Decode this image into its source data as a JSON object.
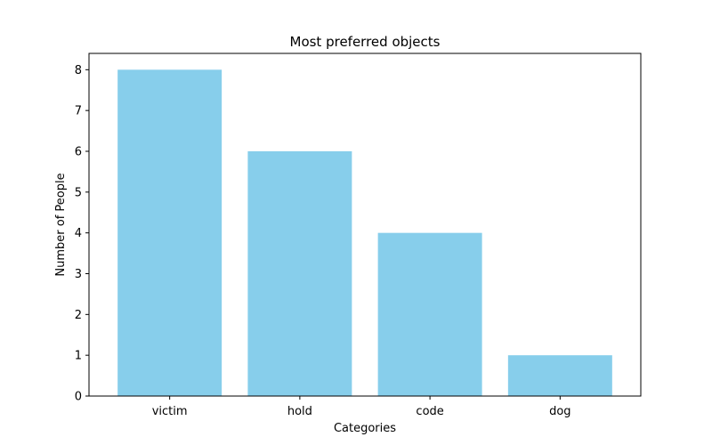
{
  "chart_data": {
    "type": "bar",
    "title": "Most preferred objects",
    "xlabel": "Categories",
    "ylabel": "Number of People",
    "categories": [
      "victim",
      "hold",
      "code",
      "dog"
    ],
    "values": [
      8,
      6,
      4,
      1
    ],
    "ylim": [
      0,
      8.4
    ],
    "yticks": [
      0,
      1,
      2,
      3,
      4,
      5,
      6,
      7,
      8
    ],
    "bar_color": "#87CEEB",
    "grid": false,
    "legend": "none"
  }
}
